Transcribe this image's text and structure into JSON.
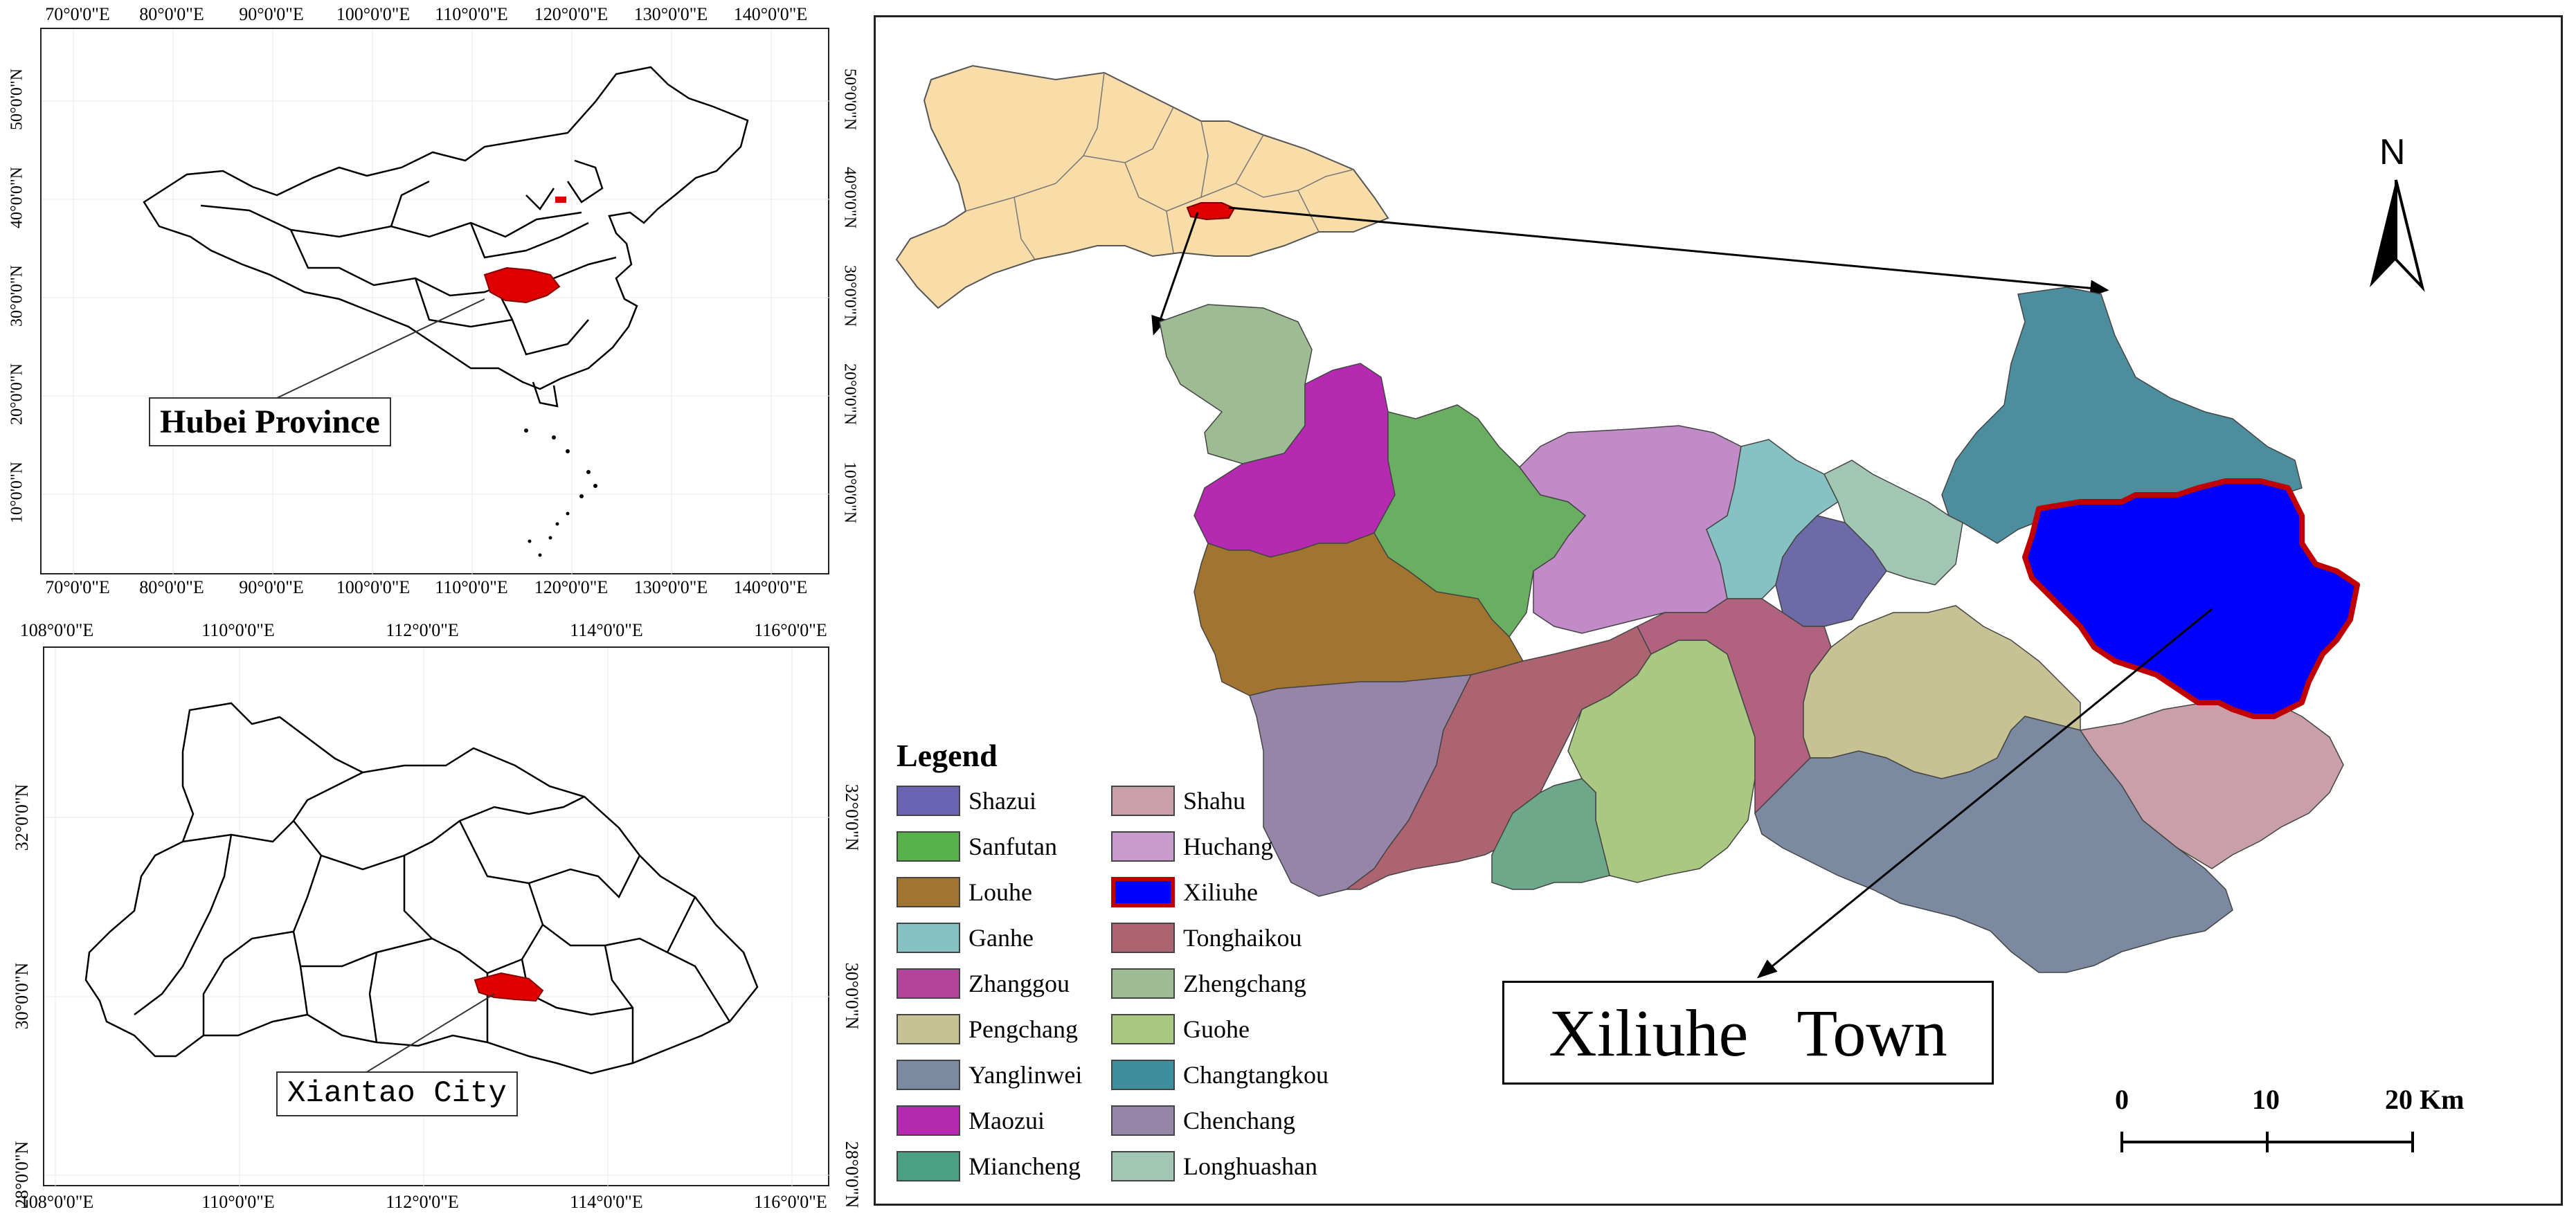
{
  "panel_a": {
    "top_ticks": [
      "70°0'0\"E",
      "80°0'0\"E",
      "90°0'0\"E",
      "100°0'0\"E",
      "110°0'0\"E",
      "120°0'0\"E",
      "130°0'0\"E",
      "140°0'0\"E"
    ],
    "bottom_ticks": [
      "70°0'0\"E",
      "80°0'0\"E",
      "90°0'0\"E",
      "100°0'0\"E",
      "110°0'0\"E",
      "120°0'0\"E",
      "130°0'0\"E",
      "140°0'0\"E"
    ],
    "left_ticks": [
      "50°0'0\"N",
      "40°0'0\"N",
      "30°0'0\"N",
      "20°0'0\"N",
      "10°0'0\"N"
    ],
    "right_ticks": [
      "50°0'0\"N",
      "40°0'0\"N",
      "30°0'0\"N",
      "20°0'0\"N",
      "10°0'0\"N"
    ],
    "callout": "Hubei Province",
    "highlight_color": "#e00000"
  },
  "panel_b": {
    "top_ticks": [
      "108°0'0\"E",
      "110°0'0\"E",
      "112°0'0\"E",
      "114°0'0\"E",
      "116°0'0\"E"
    ],
    "bottom_ticks": [
      "108°0'0\"E",
      "110°0'0\"E",
      "112°0'0\"E",
      "114°0'0\"E",
      "116°0'0\"E"
    ],
    "left_ticks": [
      "32°0'0\"N",
      "30°0'0\"N",
      "28°0'0\"N"
    ],
    "right_ticks": [
      "32°0'0\"N",
      "30°0'0\"N",
      "28°0'0\"N"
    ],
    "callout": "Xiantao City",
    "highlight_color": "#e00000"
  },
  "panel_c": {
    "north_label": "N",
    "town_label": "Xiliuhe   Town",
    "scale": {
      "labels": [
        "0",
        "10",
        "20 Km"
      ]
    },
    "legend_title": "Legend",
    "legend": [
      {
        "name": "Shazui",
        "color": "#6a63b4"
      },
      {
        "name": "Shahu",
        "color": "#c9a0aa"
      },
      {
        "name": "Sanfutan",
        "color": "#57b24b"
      },
      {
        "name": "Huchang",
        "color": "#c79ccc"
      },
      {
        "name": "Louhe",
        "color": "#a1742f"
      },
      {
        "name": "Xiliuhe",
        "color": "#0000ff",
        "outline": "#c00000"
      },
      {
        "name": "Ganhe",
        "color": "#86c2c4"
      },
      {
        "name": "Tonghaikou",
        "color": "#ab6470"
      },
      {
        "name": "Zhanggou",
        "color": "#b2449c"
      },
      {
        "name": "Zhengchang",
        "color": "#9ebc93"
      },
      {
        "name": "Pengchang",
        "color": "#c7c294"
      },
      {
        "name": "Guohe",
        "color": "#a9c982"
      },
      {
        "name": "Yanglinwei",
        "color": "#7b8aa1"
      },
      {
        "name": "Changtangkou",
        "color": "#3d8f9e"
      },
      {
        "name": "Maozui",
        "color": "#b52ab0"
      },
      {
        "name": "Chenchang",
        "color": "#9585a8"
      },
      {
        "name": "Miancheng",
        "color": "#4aa083"
      },
      {
        "name": "Longhuashan",
        "color": "#a1c7b4"
      }
    ]
  }
}
